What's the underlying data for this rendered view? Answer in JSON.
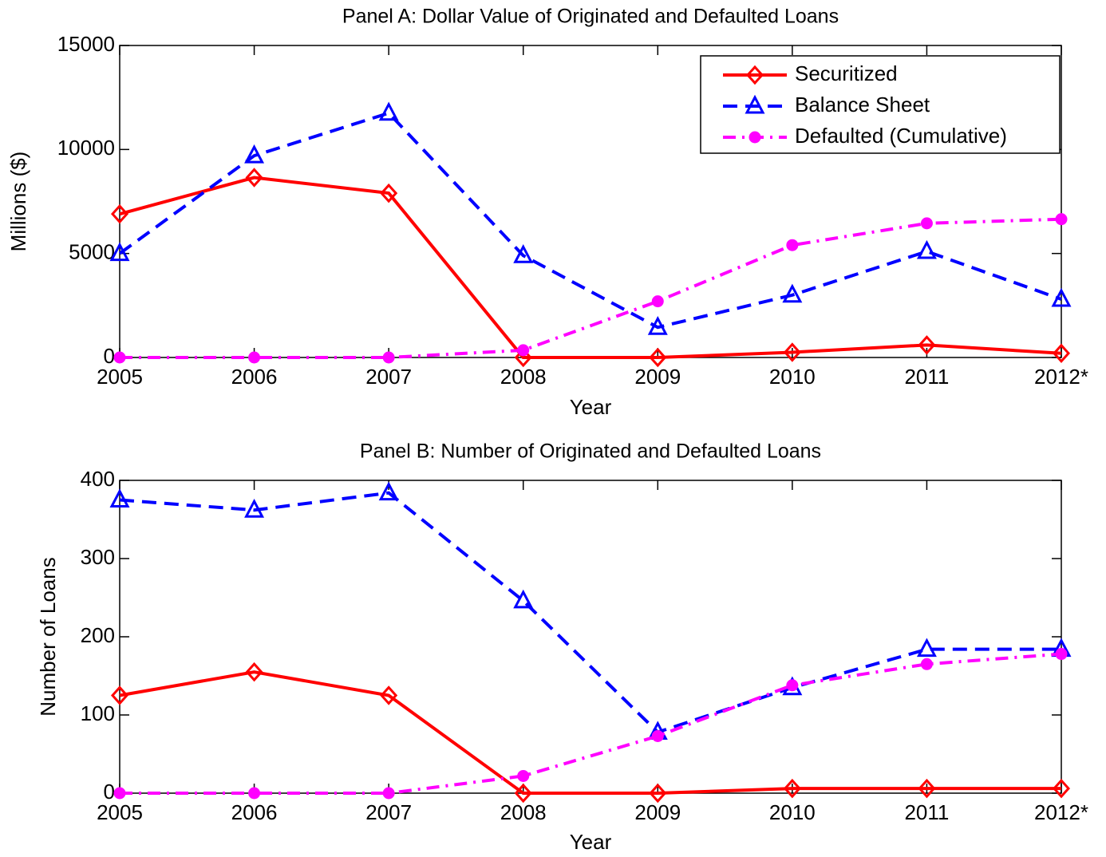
{
  "chart_data": [
    {
      "type": "line",
      "title": "Panel A: Dollar Value of Originated and Defaulted Loans",
      "x_label": "Year",
      "y_label": "Millions ($)",
      "categories": [
        "2005",
        "2006",
        "2007",
        "2008",
        "2009",
        "2010",
        "2011",
        "2012*"
      ],
      "series": [
        {
          "name": "Securitized",
          "color": "#ff0000",
          "marker": "diamond",
          "dash": "solid",
          "values": [
            6900,
            8650,
            7900,
            0,
            0,
            250,
            600,
            200
          ]
        },
        {
          "name": "Balance Sheet",
          "color": "#0000ff",
          "marker": "triangle",
          "dash": "dashed",
          "values": [
            5000,
            9700,
            11750,
            4900,
            1450,
            3000,
            5100,
            2800
          ]
        },
        {
          "name": "Defaulted (Cumulative)",
          "color": "#ff00ff",
          "marker": "circle",
          "dash": "dashdot",
          "values": [
            0,
            0,
            0,
            350,
            2700,
            5400,
            6450,
            6650
          ]
        }
      ],
      "ylim": [
        0,
        15000
      ],
      "yticks": [
        0,
        5000,
        10000,
        15000
      ],
      "legend": "upper right"
    },
    {
      "type": "line",
      "title": "Panel B: Number of Originated and Defaulted Loans",
      "x_label": "Year",
      "y_label": "Number of Loans",
      "categories": [
        "2005",
        "2006",
        "2007",
        "2008",
        "2009",
        "2010",
        "2011",
        "2012*"
      ],
      "series": [
        {
          "color": "#ff0000",
          "marker": "diamond",
          "dash": "solid",
          "values": [
            125,
            155,
            125,
            0,
            0,
            6,
            6,
            6
          ]
        },
        {
          "color": "#0000ff",
          "marker": "triangle",
          "dash": "dashed",
          "values": [
            375,
            362,
            384,
            246,
            78,
            135,
            184,
            184
          ]
        },
        {
          "color": "#ff00ff",
          "marker": "circle",
          "dash": "dashdot",
          "values": [
            0,
            0,
            0,
            22,
            73,
            138,
            165,
            178
          ]
        }
      ],
      "ylim": [
        0,
        400
      ],
      "yticks": [
        0,
        100,
        200,
        300,
        400
      ]
    }
  ]
}
